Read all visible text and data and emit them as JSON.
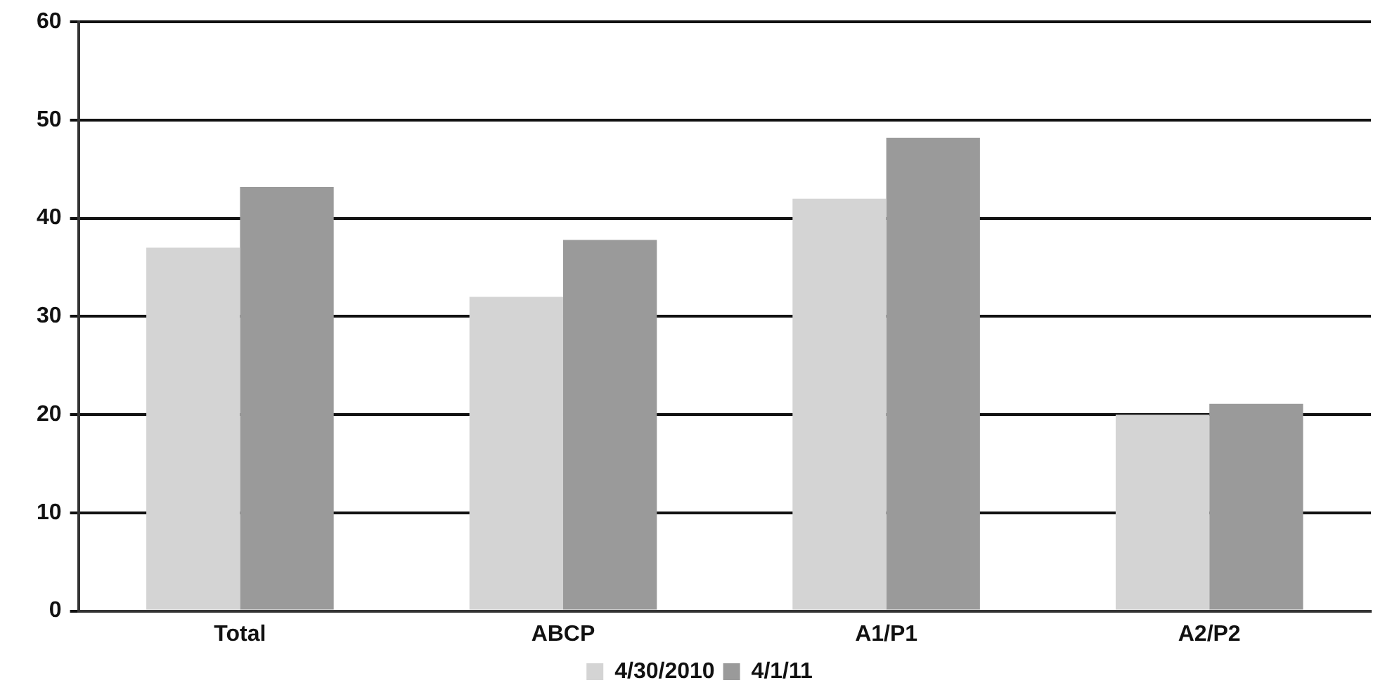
{
  "chart_data": {
    "type": "bar",
    "categories": [
      "Total",
      "ABCP",
      "A1/P1",
      "A2/P2"
    ],
    "series": [
      {
        "name": "4/30/2010",
        "color": "#d4d4d4",
        "values": [
          37,
          32,
          42,
          20
        ]
      },
      {
        "name": "4/1/11",
        "color": "#9a9a9a",
        "values": [
          43.2,
          37.8,
          48.2,
          21.1
        ]
      }
    ],
    "ylim": [
      0,
      60
    ],
    "yticks": [
      0,
      10,
      20,
      30,
      40,
      50,
      60
    ],
    "grid": "y",
    "legend": "bottom"
  }
}
